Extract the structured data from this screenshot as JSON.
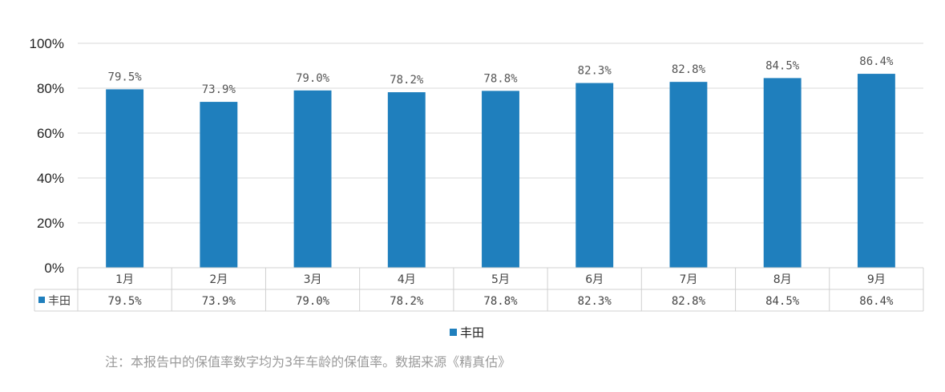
{
  "chart_data": {
    "type": "bar",
    "categories": [
      "1月",
      "2月",
      "3月",
      "4月",
      "5月",
      "6月",
      "7月",
      "8月",
      "9月"
    ],
    "series": [
      {
        "name": "丰田",
        "values": [
          79.5,
          73.9,
          79.0,
          78.2,
          78.8,
          82.3,
          82.8,
          84.5,
          86.4
        ],
        "labels": [
          "79.5%",
          "73.9%",
          "79.0%",
          "78.2%",
          "78.8%",
          "82.3%",
          "82.8%",
          "84.5%",
          "86.4%"
        ]
      }
    ],
    "ylim": [
      0,
      100
    ],
    "yticks": [
      "0%",
      "20%",
      "40%",
      "60%",
      "80%",
      "100%"
    ],
    "grid": true,
    "legend": "bottom",
    "data_table": true
  },
  "colors": {
    "bar": "#1f7fbd",
    "grid": "#d9d9d9",
    "table_border": "#d0d0d0"
  },
  "footnote": "注：本报告中的保值率数字均为3年车龄的保值率。数据来源《精真估》"
}
